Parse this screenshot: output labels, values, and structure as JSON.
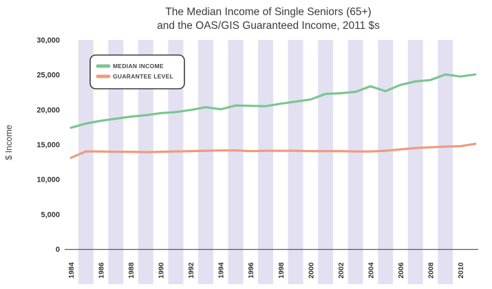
{
  "title_line1": "The Median Income of Single Seniors (65+)",
  "title_line2": "and the OAS/GIS Guaranteed Income, 2011 $s",
  "ylabel": "$ Income",
  "colors": {
    "median": "#79c68f",
    "guarantee": "#ee9b7c",
    "band": "#e3e0f2",
    "axis": "#555555"
  },
  "chart_data": {
    "type": "line",
    "title": "The Median Income of Single Seniors (65+) and the OAS/GIS Guaranteed Income, 2011 $s",
    "xlabel": "",
    "ylabel": "$ Income",
    "ylim": [
      0,
      30000
    ],
    "xlim": [
      1984,
      2011
    ],
    "yticks": [
      0,
      5000,
      10000,
      15000,
      20000,
      25000,
      30000
    ],
    "ytick_labels": [
      "0",
      "5,000",
      "10,000",
      "15,000",
      "20,000",
      "25,000",
      "30,000"
    ],
    "xticks": [
      1984,
      1986,
      1988,
      1990,
      1992,
      1994,
      1996,
      1998,
      2000,
      2002,
      2004,
      2006,
      2008,
      2010
    ],
    "xtick_labels": [
      "1984",
      "1986",
      "1988",
      "1990",
      "1992",
      "1994",
      "1996",
      "1998",
      "2000",
      "2002",
      "2004",
      "2006",
      "2008",
      "2010"
    ],
    "shaded_years": [
      1985,
      1987,
      1989,
      1991,
      1993,
      1995,
      1997,
      1999,
      2001,
      2003,
      2005,
      2007,
      2009
    ],
    "legend_position": "top-left",
    "x": [
      1984,
      1985,
      1986,
      1987,
      1988,
      1989,
      1990,
      1991,
      1992,
      1993,
      1994,
      1995,
      1996,
      1997,
      1998,
      1999,
      2000,
      2001,
      2002,
      2003,
      2004,
      2005,
      2006,
      2007,
      2008,
      2009,
      2010,
      2011
    ],
    "series": [
      {
        "name": "MEDIAN INCOME",
        "color": "#79c68f",
        "values": [
          17400,
          18000,
          18400,
          18700,
          19000,
          19200,
          19500,
          19650,
          19950,
          20350,
          20050,
          20600,
          20550,
          20500,
          20850,
          21150,
          21450,
          22250,
          22350,
          22550,
          23350,
          22650,
          23550,
          24050,
          24250,
          25050,
          24750,
          25050
        ]
      },
      {
        "name": "GUARANTEE LEVEL",
        "color": "#ee9b7c",
        "values": [
          13100,
          14000,
          14000,
          13950,
          13950,
          13900,
          13950,
          14000,
          14050,
          14100,
          14150,
          14150,
          14050,
          14100,
          14100,
          14100,
          14050,
          14050,
          14050,
          14000,
          14000,
          14100,
          14300,
          14500,
          14600,
          14700,
          14750,
          15100
        ]
      }
    ]
  }
}
